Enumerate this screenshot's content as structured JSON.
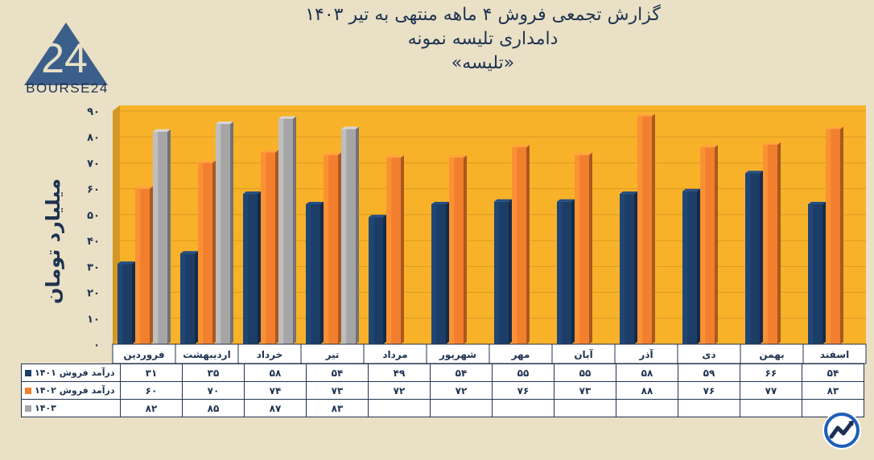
{
  "title": {
    "line1": "گزارش تجمعی فروش ۴ ماهه منتهی به تیر ۱۴۰۳",
    "line2": "دامداری تلیسه نمونه",
    "line3": "«تلیسه»"
  },
  "logo": {
    "text": "BOURSE24",
    "mark": "24"
  },
  "badge_icon": "trend-up-circle-icon",
  "colors": {
    "plot_bg": "#f8b22a",
    "s1401": "#1c3d66",
    "s1402": "#f27f2e",
    "s1403": "#a5a5a5",
    "text": "#1f3350"
  },
  "chart_data": {
    "type": "bar",
    "ylabel": "میلیارد تومان",
    "ylim": [
      0,
      90
    ],
    "yticks": [
      "۰",
      "۱۰",
      "۲۰",
      "۳۰",
      "۴۰",
      "۵۰",
      "۶۰",
      "۷۰",
      "۸۰",
      "۹۰"
    ],
    "ytick_values": [
      0,
      10,
      20,
      30,
      40,
      50,
      60,
      70,
      80,
      90
    ],
    "grid": true,
    "categories": [
      "فروردین",
      "اردیبهشت",
      "خرداد",
      "تیر",
      "مرداد",
      "شهریور",
      "مهر",
      "آبان",
      "آذر",
      "دی",
      "بهمن",
      "اسفند"
    ],
    "series": [
      {
        "name": "درآمد فروش ۱۴۰۱",
        "values": [
          31,
          35,
          58,
          54,
          49,
          54,
          55,
          55,
          58,
          59,
          66,
          54
        ],
        "labels": [
          "۳۱",
          "۳۵",
          "۵۸",
          "۵۴",
          "۴۹",
          "۵۴",
          "۵۵",
          "۵۵",
          "۵۸",
          "۵۹",
          "۶۶",
          "۵۴"
        ]
      },
      {
        "name": "درآمد فروش ۱۴۰۲",
        "values": [
          60,
          70,
          74,
          73,
          72,
          72,
          76,
          73,
          88,
          76,
          77,
          83
        ],
        "labels": [
          "۶۰",
          "۷۰",
          "۷۴",
          "۷۳",
          "۷۲",
          "۷۲",
          "۷۶",
          "۷۳",
          "۸۸",
          "۷۶",
          "۷۷",
          "۸۳"
        ]
      },
      {
        "name": "۱۴۰۳",
        "values": [
          82,
          85,
          87,
          83,
          null,
          null,
          null,
          null,
          null,
          null,
          null,
          null
        ],
        "labels": [
          "۸۲",
          "۸۵",
          "۸۷",
          "۸۳",
          "",
          "",
          "",
          "",
          "",
          "",
          "",
          ""
        ]
      }
    ]
  }
}
